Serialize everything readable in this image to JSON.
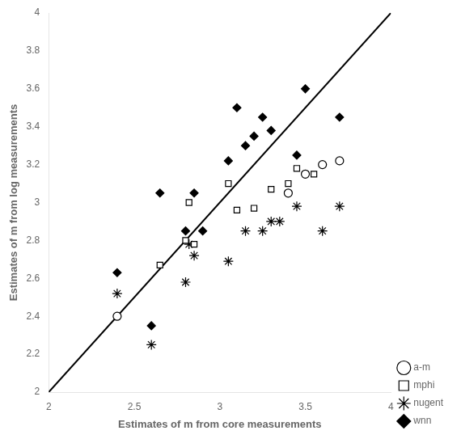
{
  "chart_data": {
    "type": "scatter",
    "xlabel": "Estimates of m from core measurements",
    "ylabel": "Estimates of m from log measurements",
    "xlim": [
      2,
      4
    ],
    "ylim": [
      2,
      4
    ],
    "xticks": [
      2,
      2.5,
      3,
      3.5,
      4
    ],
    "yticks": [
      2,
      2.2,
      2.4,
      2.6,
      2.8,
      3,
      3.2,
      3.4,
      3.6,
      3.8,
      4
    ],
    "grid": false,
    "legend": "lower right",
    "series": [
      {
        "type": "line",
        "color": "#000000",
        "x": [
          2,
          4
        ],
        "values": [
          2,
          4
        ]
      },
      {
        "name": "a-m",
        "marker": "circle",
        "color": "#000000",
        "x": [
          2.4,
          3.4,
          3.5,
          3.6,
          3.7
        ],
        "values": [
          2.4,
          3.05,
          3.15,
          3.2,
          3.22
        ]
      },
      {
        "name": "mphi",
        "marker": "square",
        "color": "#000000",
        "x": [
          2.65,
          2.8,
          2.82,
          2.85,
          3.05,
          3.1,
          3.2,
          3.3,
          3.4,
          3.45,
          3.55
        ],
        "values": [
          2.67,
          2.8,
          3.0,
          2.78,
          3.1,
          2.96,
          2.97,
          3.07,
          3.1,
          3.18,
          3.15
        ]
      },
      {
        "name": "nugent",
        "marker": "star",
        "color": "#000000",
        "x": [
          2.4,
          2.6,
          2.8,
          2.82,
          2.85,
          3.05,
          3.15,
          3.25,
          3.3,
          3.35,
          3.45,
          3.6,
          3.7
        ],
        "values": [
          2.52,
          2.25,
          2.58,
          2.78,
          2.72,
          2.69,
          2.85,
          2.85,
          2.9,
          2.9,
          2.98,
          2.85,
          2.98
        ]
      },
      {
        "name": "wnn",
        "marker": "diamond",
        "color": "#000000",
        "x": [
          2.4,
          2.6,
          2.65,
          2.8,
          2.85,
          2.9,
          3.05,
          3.1,
          3.15,
          3.2,
          3.25,
          3.3,
          3.45,
          3.5,
          3.7
        ],
        "values": [
          2.63,
          2.35,
          3.05,
          2.85,
          3.05,
          2.85,
          3.22,
          3.5,
          3.3,
          3.35,
          3.45,
          3.38,
          3.25,
          3.6,
          3.45
        ]
      }
    ]
  }
}
